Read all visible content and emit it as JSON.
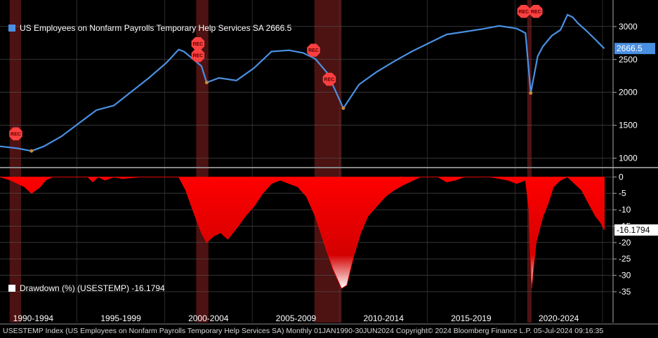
{
  "colors": {
    "line": "#4a90e2",
    "drawdown": "#ff0000",
    "recession": "#5a1515",
    "background": "#000000"
  },
  "footer": "USESTEMP Index (US Employees on Nonfarm Payrolls Temporary Help Services SA)  Monthly 01JAN1990-30JUN2024  Copyright© 2024 Bloomberg Finance L.P.  05-Jul-2024 09:16:35",
  "chart_data": [
    {
      "type": "line",
      "legend": "US Employees on Nonfarm Payrolls Temporary Help Services SA 2666.5",
      "last_value_label": "2666.5",
      "ylim": [
        900,
        3350
      ],
      "y_ticks": [
        "1000",
        "1500",
        "2000",
        "2500",
        "3000"
      ],
      "grid": true,
      "legend_placement": "top-left",
      "series": [
        {
          "x": [
            1990.0,
            1991.0,
            1991.8,
            1992.5,
            1993.5,
            1994.5,
            1995.5,
            1996.5,
            1997.5,
            1998.5,
            1999.5,
            2000.2,
            2000.5,
            2001.5,
            2001.8,
            2002.5,
            2003.5,
            2004.5,
            2005.5,
            2006.5,
            2007.3,
            2008.0,
            2008.7,
            2009.6,
            2010.5,
            2011.5,
            2012.5,
            2013.5,
            2014.5,
            2015.5,
            2016.5,
            2017.5,
            2018.5,
            2019.5,
            2020.0,
            2020.3,
            2020.7,
            2021.0,
            2021.5,
            2022.0,
            2022.4,
            2022.7,
            2023.0,
            2023.5,
            2024.0,
            2024.5
          ],
          "y": [
            1180,
            1150,
            1110,
            1180,
            1330,
            1530,
            1730,
            1800,
            2010,
            2220,
            2450,
            2650,
            2620,
            2400,
            2150,
            2220,
            2180,
            2370,
            2620,
            2640,
            2600,
            2510,
            2290,
            1760,
            2120,
            2310,
            2470,
            2620,
            2750,
            2880,
            2920,
            2960,
            3010,
            2970,
            2900,
            1990,
            2550,
            2700,
            2860,
            2950,
            3180,
            3140,
            3050,
            2930,
            2800,
            2666.5
          ]
        }
      ]
    },
    {
      "type": "area",
      "legend": "Drawdown (%) (USESTEMP) -16.1794",
      "last_value_label": "-16.1794",
      "ylim": [
        -38,
        2
      ],
      "y_ticks": [
        "0",
        "-5",
        "-10",
        "-15",
        "-20",
        "-25",
        "-30",
        "-35"
      ],
      "x_tick_labels": [
        "1990-1994",
        "1995-1999",
        "2000-2004",
        "2005-2009",
        "2010-2014",
        "2015-2019",
        "2020-2024"
      ],
      "grid": true,
      "legend_placement": "bottom-left",
      "series": [
        {
          "x": [
            1990.0,
            1990.6,
            1991.0,
            1991.4,
            1991.8,
            1992.3,
            1992.6,
            1993.0,
            1995.0,
            1995.3,
            1995.6,
            1996.0,
            1996.5,
            1997.0,
            1998.0,
            2000.2,
            2000.6,
            2001.0,
            2001.5,
            2001.8,
            2002.2,
            2002.6,
            2003.0,
            2003.6,
            2004.0,
            2004.5,
            2005.0,
            2005.5,
            2006.0,
            2006.5,
            2007.0,
            2007.5,
            2008.0,
            2008.5,
            2009.0,
            2009.5,
            2009.8,
            2010.2,
            2010.6,
            2011.0,
            2011.5,
            2012.0,
            2012.5,
            2013.0,
            2013.6,
            2014.0,
            2015.0,
            2015.5,
            2016.0,
            2016.5,
            2017.0,
            2018.0,
            2019.0,
            2019.5,
            2020.0,
            2020.2,
            2020.35,
            2020.6,
            2021.0,
            2021.3,
            2021.6,
            2022.0,
            2022.4,
            2022.8,
            2023.2,
            2023.6,
            2024.0,
            2024.3,
            2024.5
          ],
          "y": [
            0,
            -1,
            -2,
            -3,
            -5,
            -3,
            -1,
            0,
            0,
            -1.5,
            0,
            -1,
            0,
            -0.5,
            0,
            0,
            -4,
            -10,
            -17,
            -20,
            -18,
            -17,
            -19,
            -15,
            -12,
            -9,
            -5,
            -2,
            -1,
            -2,
            -3,
            -6,
            -12,
            -20,
            -28,
            -34,
            -33,
            -24,
            -17,
            -12,
            -9,
            -6,
            -4,
            -2.5,
            -1,
            0,
            0,
            -1.5,
            -1,
            0,
            0,
            0,
            -1,
            -2,
            -1,
            -10,
            -34,
            -20,
            -12,
            -8,
            -3,
            -1,
            0,
            -2,
            -4,
            -8,
            -12,
            -14,
            -16.1794
          ]
        }
      ]
    }
  ],
  "recessions": [
    {
      "start": 1990.55,
      "end": 1991.2
    },
    {
      "start": 2001.2,
      "end": 2001.9
    },
    {
      "start": 2007.95,
      "end": 2009.5
    },
    {
      "start": 2020.1,
      "end": 2020.35
    }
  ],
  "rec_markers": [
    {
      "x": 1990.9,
      "y": 1370,
      "label": "REC"
    },
    {
      "x": 2001.3,
      "y": 2740,
      "label": "REC"
    },
    {
      "x": 2001.3,
      "y": 2560,
      "label": "REC"
    },
    {
      "x": 2007.9,
      "y": 2640,
      "label": "REC"
    },
    {
      "x": 2008.8,
      "y": 2200,
      "label": "REC"
    },
    {
      "x": 2019.9,
      "y": 3230,
      "label": "REC"
    },
    {
      "x": 2020.6,
      "y": 3230,
      "label": "REC"
    }
  ]
}
